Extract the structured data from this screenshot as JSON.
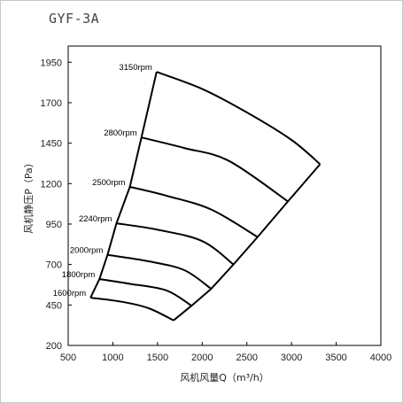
{
  "header": {
    "model": "GYF-3A"
  },
  "chart_data": {
    "type": "line",
    "title": "GYF-3A",
    "xlabel": "风机风量Q（m³/h）",
    "ylabel": "风机静压P（Pa）",
    "xlim": [
      500,
      4000
    ],
    "ylim": [
      200,
      2050
    ],
    "x_ticks": [
      "500",
      "1000",
      "1500",
      "2000",
      "2500",
      "3000",
      "3500",
      "4000"
    ],
    "y_ticks": [
      "200",
      "450",
      "700",
      "950",
      "1200",
      "1450",
      "1700",
      "1950"
    ],
    "grid": false,
    "series": [
      {
        "name": "3150rpm",
        "label": "3150rpm",
        "x": [
          1490,
          2000,
          2500,
          3000,
          3320
        ],
        "y": [
          1890,
          1785,
          1640,
          1470,
          1320
        ]
      },
      {
        "name": "2800rpm",
        "label": "2800rpm",
        "x": [
          1320,
          1800,
          2300,
          2960
        ],
        "y": [
          1485,
          1420,
          1340,
          1090
        ]
      },
      {
        "name": "2500rpm",
        "label": "2500rpm",
        "x": [
          1190,
          1600,
          2100,
          2620
        ],
        "y": [
          1180,
          1125,
          1040,
          870
        ]
      },
      {
        "name": "2240rpm",
        "label": "2240rpm",
        "x": [
          1040,
          1500,
          2000,
          2350
        ],
        "y": [
          955,
          915,
          845,
          700
        ]
      },
      {
        "name": "2000rpm",
        "label": "2000rpm",
        "x": [
          940,
          1400,
          1800,
          2100
        ],
        "y": [
          760,
          720,
          665,
          550
        ]
      },
      {
        "name": "1800rpm",
        "label": "1800rpm",
        "x": [
          850,
          1200,
          1600,
          1880
        ],
        "y": [
          610,
          580,
          540,
          445
        ]
      },
      {
        "name": "1600rpm",
        "label": "1600rpm",
        "x": [
          750,
          1100,
          1400,
          1680
        ],
        "y": [
          495,
          470,
          430,
          355
        ]
      }
    ],
    "envelope": {
      "min_flow": {
        "x": [
          750,
          850,
          940,
          1040,
          1190,
          1320,
          1490
        ],
        "y": [
          495,
          610,
          760,
          955,
          1180,
          1485,
          1890
        ]
      },
      "max_flow": {
        "x": [
          1680,
          1880,
          2100,
          2350,
          2620,
          2960,
          3320
        ],
        "y": [
          355,
          445,
          550,
          700,
          870,
          1090,
          1320
        ]
      }
    },
    "colors": {
      "curve": "#000000",
      "axis": "#000000",
      "text": "#222222"
    }
  }
}
